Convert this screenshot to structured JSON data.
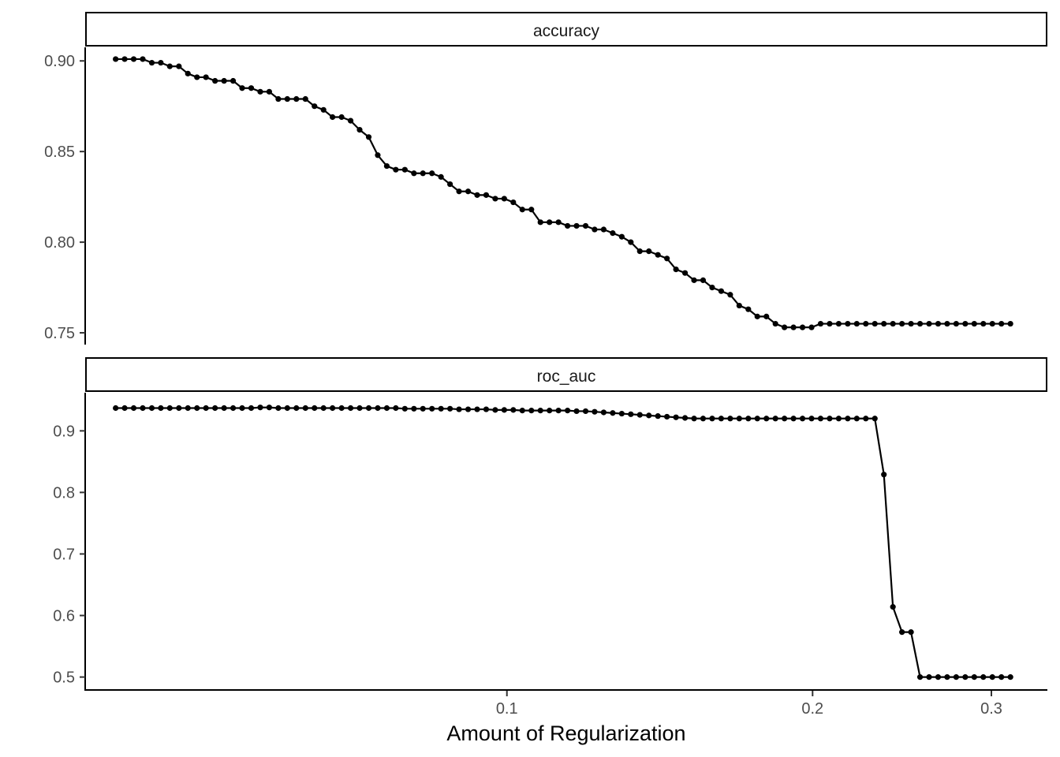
{
  "chart_data": {
    "type": "line",
    "xlabel": "Amount of Regularization",
    "x_scale": "log10",
    "x_ticks": [
      0.1,
      0.2,
      0.3
    ],
    "x_tick_labels": [
      "0.1",
      "0.2",
      "0.3"
    ],
    "xlim": [
      0.0385,
      0.34
    ],
    "line_color": "#000000",
    "points_shown": true,
    "grid": false,
    "legend": "none",
    "x": [
      0.04118,
      0.04203,
      0.0429,
      0.04379,
      0.0447,
      0.04562,
      0.04656,
      0.04753,
      0.04851,
      0.04952,
      0.05054,
      0.05159,
      0.05266,
      0.05375,
      0.05486,
      0.056,
      0.05716,
      0.05834,
      0.05955,
      0.06078,
      0.06204,
      0.06333,
      0.06464,
      0.06598,
      0.06734,
      0.06874,
      0.07016,
      0.07161,
      0.0731,
      0.07461,
      0.07616,
      0.07773,
      0.07934,
      0.08099,
      0.08266,
      0.08437,
      0.08612,
      0.0879,
      0.08972,
      0.09158,
      0.09348,
      0.09541,
      0.09739,
      0.0994,
      0.10146,
      0.10356,
      0.10571,
      0.1079,
      0.11013,
      0.11241,
      0.11474,
      0.11711,
      0.11954,
      0.12201,
      0.12454,
      0.12712,
      0.12975,
      0.13244,
      0.13518,
      0.13798,
      0.14083,
      0.14375,
      0.14673,
      0.14977,
      0.15287,
      0.15603,
      0.15927,
      0.16256,
      0.16593,
      0.16937,
      0.17287,
      0.17645,
      0.18011,
      0.18384,
      0.18764,
      0.19153,
      0.19549,
      0.19954,
      0.20367,
      0.20789,
      0.2122,
      0.21659,
      0.22108,
      0.22566,
      0.23033,
      0.2351,
      0.23997,
      0.24494,
      0.25001,
      0.25519,
      0.26047,
      0.26587,
      0.27137,
      0.27699,
      0.28273,
      0.28858,
      0.29456,
      0.30066,
      0.30688,
      0.31324
    ],
    "panels": [
      {
        "name": "accuracy",
        "ylim": [
          0.7435,
          0.9075
        ],
        "y_ticks": [
          0.75,
          0.8,
          0.85,
          0.9
        ],
        "y_tick_labels": [
          "0.75",
          "0.80",
          "0.85",
          "0.90"
        ],
        "values": [
          0.901,
          0.901,
          0.901,
          0.901,
          0.899,
          0.899,
          0.897,
          0.897,
          0.893,
          0.891,
          0.891,
          0.889,
          0.889,
          0.889,
          0.885,
          0.885,
          0.883,
          0.883,
          0.879,
          0.879,
          0.879,
          0.879,
          0.875,
          0.873,
          0.869,
          0.869,
          0.867,
          0.862,
          0.858,
          0.848,
          0.842,
          0.84,
          0.84,
          0.838,
          0.838,
          0.838,
          0.836,
          0.832,
          0.828,
          0.828,
          0.826,
          0.826,
          0.824,
          0.824,
          0.822,
          0.818,
          0.818,
          0.811,
          0.811,
          0.811,
          0.809,
          0.809,
          0.809,
          0.807,
          0.807,
          0.805,
          0.803,
          0.8,
          0.795,
          0.795,
          0.793,
          0.791,
          0.785,
          0.783,
          0.779,
          0.779,
          0.775,
          0.773,
          0.771,
          0.765,
          0.763,
          0.759,
          0.759,
          0.755,
          0.753,
          0.753,
          0.753,
          0.753,
          0.755,
          0.755,
          0.755,
          0.755,
          0.755,
          0.755,
          0.755,
          0.755,
          0.755,
          0.755,
          0.755,
          0.755,
          0.755,
          0.755,
          0.755,
          0.755,
          0.755,
          0.755,
          0.755,
          0.755,
          0.755,
          0.755
        ]
      },
      {
        "name": "roc_auc",
        "ylim": [
          0.479,
          0.962
        ],
        "y_ticks": [
          0.5,
          0.6,
          0.7,
          0.8,
          0.9
        ],
        "y_tick_labels": [
          "0.5",
          "0.6",
          "0.7",
          "0.8",
          "0.9"
        ],
        "values": [
          0.937,
          0.937,
          0.937,
          0.937,
          0.937,
          0.937,
          0.937,
          0.937,
          0.937,
          0.937,
          0.937,
          0.937,
          0.937,
          0.937,
          0.937,
          0.937,
          0.938,
          0.938,
          0.937,
          0.937,
          0.937,
          0.937,
          0.937,
          0.937,
          0.937,
          0.937,
          0.937,
          0.937,
          0.937,
          0.937,
          0.937,
          0.937,
          0.936,
          0.936,
          0.936,
          0.936,
          0.936,
          0.936,
          0.935,
          0.935,
          0.935,
          0.935,
          0.934,
          0.934,
          0.934,
          0.933,
          0.933,
          0.933,
          0.933,
          0.933,
          0.933,
          0.932,
          0.932,
          0.931,
          0.93,
          0.929,
          0.928,
          0.927,
          0.926,
          0.925,
          0.924,
          0.923,
          0.922,
          0.921,
          0.92,
          0.92,
          0.92,
          0.92,
          0.92,
          0.92,
          0.92,
          0.92,
          0.92,
          0.92,
          0.92,
          0.92,
          0.92,
          0.92,
          0.92,
          0.92,
          0.92,
          0.92,
          0.92,
          0.92,
          0.92,
          0.829,
          0.614,
          0.573,
          0.573,
          0.5,
          0.5,
          0.5,
          0.5,
          0.5,
          0.5,
          0.5,
          0.5,
          0.5,
          0.5,
          0.5
        ]
      }
    ]
  }
}
